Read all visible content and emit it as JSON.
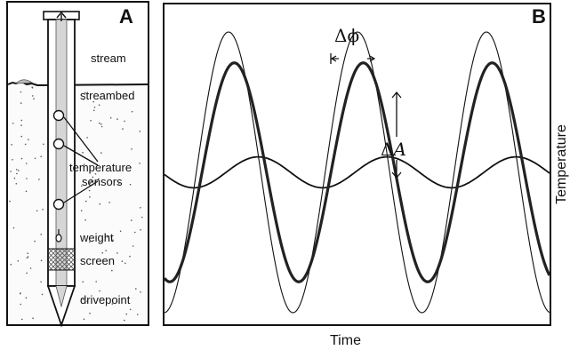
{
  "panel_a": {
    "letter": "A",
    "labels": {
      "stream": "stream",
      "streambed": "streambed",
      "temperature": "temperature",
      "sensors": "sensors",
      "weight": "weight",
      "screen": "screen",
      "drivepoint": "drivepoint"
    }
  },
  "panel_b": {
    "letter": "B",
    "delta_symbol": "Δ",
    "phi_symbol": "ϕ",
    "amp_symbol": "A",
    "x_axis_label": "Time",
    "y_axis_label": "Temperature",
    "curves": [
      {
        "name": "thin",
        "amplitude": 1.0,
        "phase": 0.0
      },
      {
        "name": "thick",
        "amplitude": 0.78,
        "phase": 0.28
      },
      {
        "name": "damped",
        "amplitude": 0.11,
        "phase": 1.45
      }
    ]
  }
}
